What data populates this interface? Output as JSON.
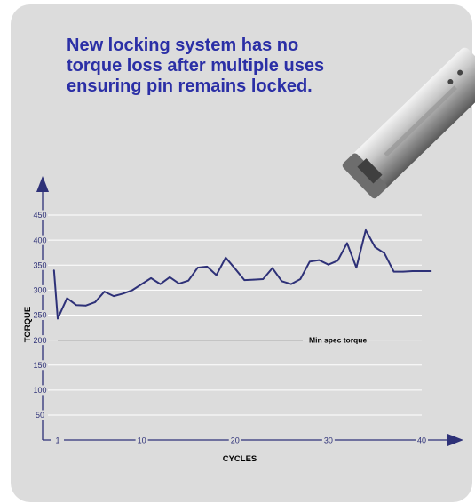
{
  "headline": {
    "line1": "New locking system has no",
    "line2": "torque loss after multiple uses",
    "line3": "ensuring pin remains locked."
  },
  "illustration": {
    "icon": "torque-tool-icon"
  },
  "colors": {
    "panel": "#dcdcdc",
    "headline": "#2b2fa6",
    "series": "#2e3178",
    "axis": "#2e3178",
    "spec_line": "#000000",
    "ticks": "#ffffff"
  },
  "chart_data": {
    "type": "line",
    "xlabel": "CYCLES",
    "ylabel": "TORQUE",
    "xlim": [
      0.5,
      41
    ],
    "ylim": [
      0,
      480
    ],
    "x_ticks": [
      "1",
      "10",
      "20",
      "30",
      "40"
    ],
    "y_ticks": [
      "50",
      "100",
      "150",
      "200",
      "250",
      "300",
      "350",
      "400",
      "450"
    ],
    "grid": false,
    "reference_line": {
      "y": 200,
      "label": "Min spec torque"
    },
    "series": [
      {
        "x": [
          0.6,
          1,
          2,
          3,
          4,
          5,
          6,
          7,
          8,
          9,
          10,
          11,
          12,
          13,
          14,
          15,
          16,
          17,
          18,
          19,
          20,
          21,
          22,
          23,
          24,
          25,
          26,
          27,
          28,
          29,
          30,
          31,
          32,
          33,
          34,
          35,
          36,
          37,
          38,
          39,
          40,
          41
        ],
        "values": [
          340,
          243,
          284,
          270,
          269,
          276,
          297,
          288,
          293,
          300,
          312,
          324,
          312,
          326,
          313,
          319,
          345,
          347,
          330,
          365,
          343,
          320,
          321,
          322,
          344,
          318,
          312,
          322,
          357,
          360,
          351,
          359,
          394,
          345,
          420,
          386,
          374,
          337,
          337,
          338,
          338,
          338
        ]
      }
    ]
  }
}
